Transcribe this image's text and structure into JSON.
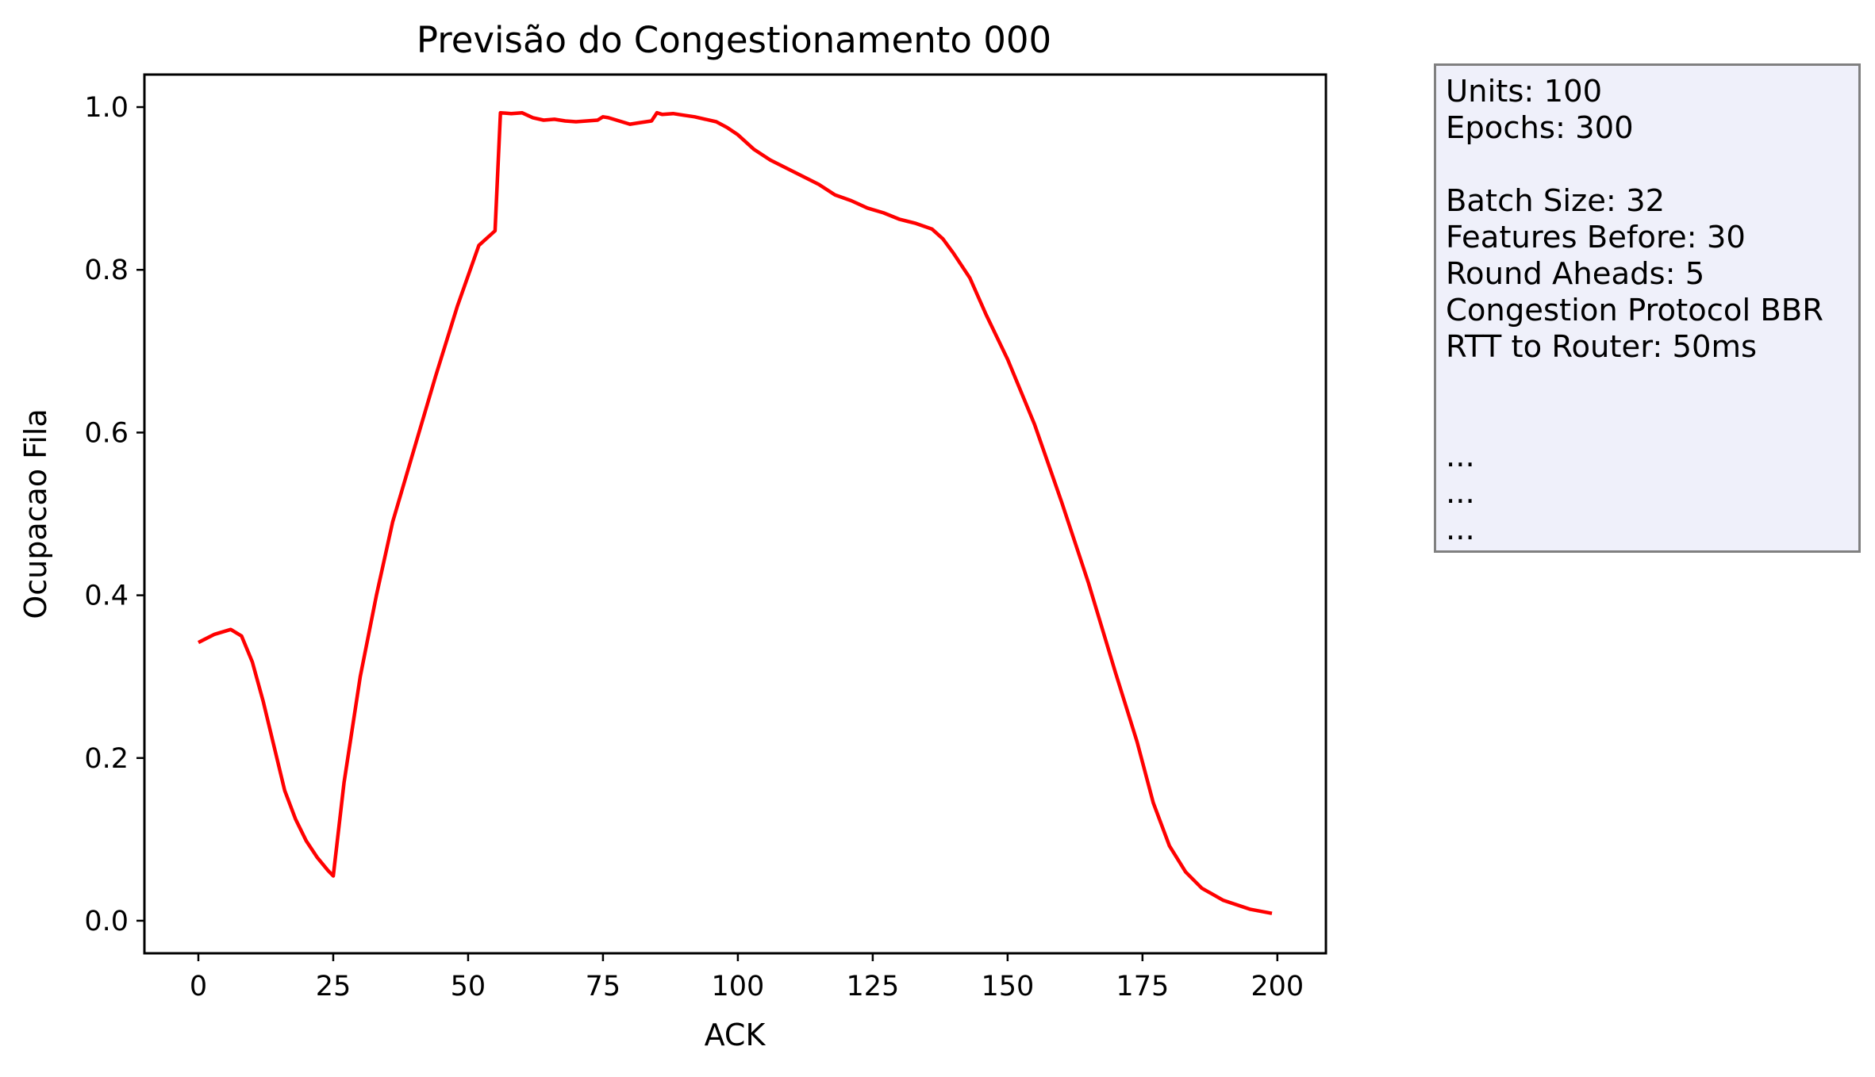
{
  "chart_data": {
    "type": "line",
    "title": "Previsão do Congestionamento 000",
    "xlabel": "ACK",
    "ylabel": "Ocupacao Fila",
    "xlim": [
      -10,
      209
    ],
    "ylim": [
      -0.04,
      1.04
    ],
    "xticks": [
      0,
      25,
      50,
      75,
      100,
      125,
      150,
      175,
      200
    ],
    "yticks": [
      0.0,
      0.2,
      0.4,
      0.6,
      0.8,
      1.0
    ],
    "ytick_labels": [
      "0.0",
      "0.2",
      "0.4",
      "0.6",
      "0.8",
      "1.0"
    ],
    "grid": false,
    "series": [
      {
        "color": "#ff0000",
        "x": [
          0,
          3,
          6,
          8,
          10,
          12,
          14,
          16,
          18,
          20,
          22,
          24,
          25,
          27,
          30,
          33,
          36,
          40,
          44,
          48,
          52,
          55,
          56,
          58,
          60,
          62,
          64,
          66,
          68,
          70,
          72,
          74,
          75,
          76,
          78,
          80,
          82,
          84,
          85,
          86,
          88,
          90,
          92,
          94,
          96,
          98,
          100,
          103,
          106,
          109,
          112,
          115,
          118,
          121,
          124,
          127,
          130,
          133,
          136,
          138,
          140,
          143,
          146,
          150,
          155,
          160,
          165,
          170,
          174,
          177,
          180,
          183,
          186,
          190,
          195,
          199
        ],
        "y": [
          0.342,
          0.352,
          0.358,
          0.35,
          0.318,
          0.27,
          0.215,
          0.16,
          0.125,
          0.098,
          0.078,
          0.062,
          0.055,
          0.17,
          0.3,
          0.4,
          0.49,
          0.58,
          0.67,
          0.755,
          0.83,
          0.848,
          0.993,
          0.992,
          0.993,
          0.987,
          0.984,
          0.985,
          0.983,
          0.982,
          0.983,
          0.984,
          0.988,
          0.987,
          0.983,
          0.979,
          0.981,
          0.983,
          0.993,
          0.991,
          0.992,
          0.99,
          0.988,
          0.985,
          0.982,
          0.975,
          0.966,
          0.948,
          0.935,
          0.925,
          0.915,
          0.905,
          0.892,
          0.885,
          0.876,
          0.87,
          0.862,
          0.857,
          0.85,
          0.838,
          0.82,
          0.79,
          0.745,
          0.69,
          0.61,
          0.515,
          0.415,
          0.305,
          0.22,
          0.145,
          0.092,
          0.06,
          0.04,
          0.025,
          0.014,
          0.009
        ]
      }
    ]
  },
  "info_box": {
    "lines": [
      "Units: 100",
      "Epochs: 300",
      "",
      "Batch Size: 32",
      "Features Before: 30",
      "Round Aheads: 5",
      "Congestion Protocol BBR",
      "RTT to Router: 50ms",
      "",
      "",
      "...",
      "...",
      "..."
    ]
  }
}
